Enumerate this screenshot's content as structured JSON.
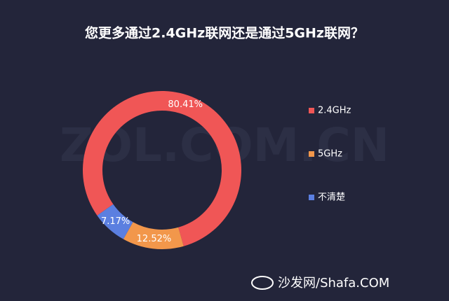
{
  "chart_data": {
    "type": "donut",
    "title": "您更多通过2.4GHz联网还是通过5GHz联网？",
    "categories": [
      "2.4GHz",
      "5GHz",
      "不清楚"
    ],
    "values": [
      80.41,
      12.52,
      7.17
    ],
    "value_labels": [
      "80.41%",
      "12.52%",
      "7.17%"
    ],
    "colors": [
      "#f05656",
      "#f2974b",
      "#5b7fe0"
    ],
    "watermark": "ZOL.COM.CN",
    "logo_text": "沙发网/Shafa.COM"
  }
}
